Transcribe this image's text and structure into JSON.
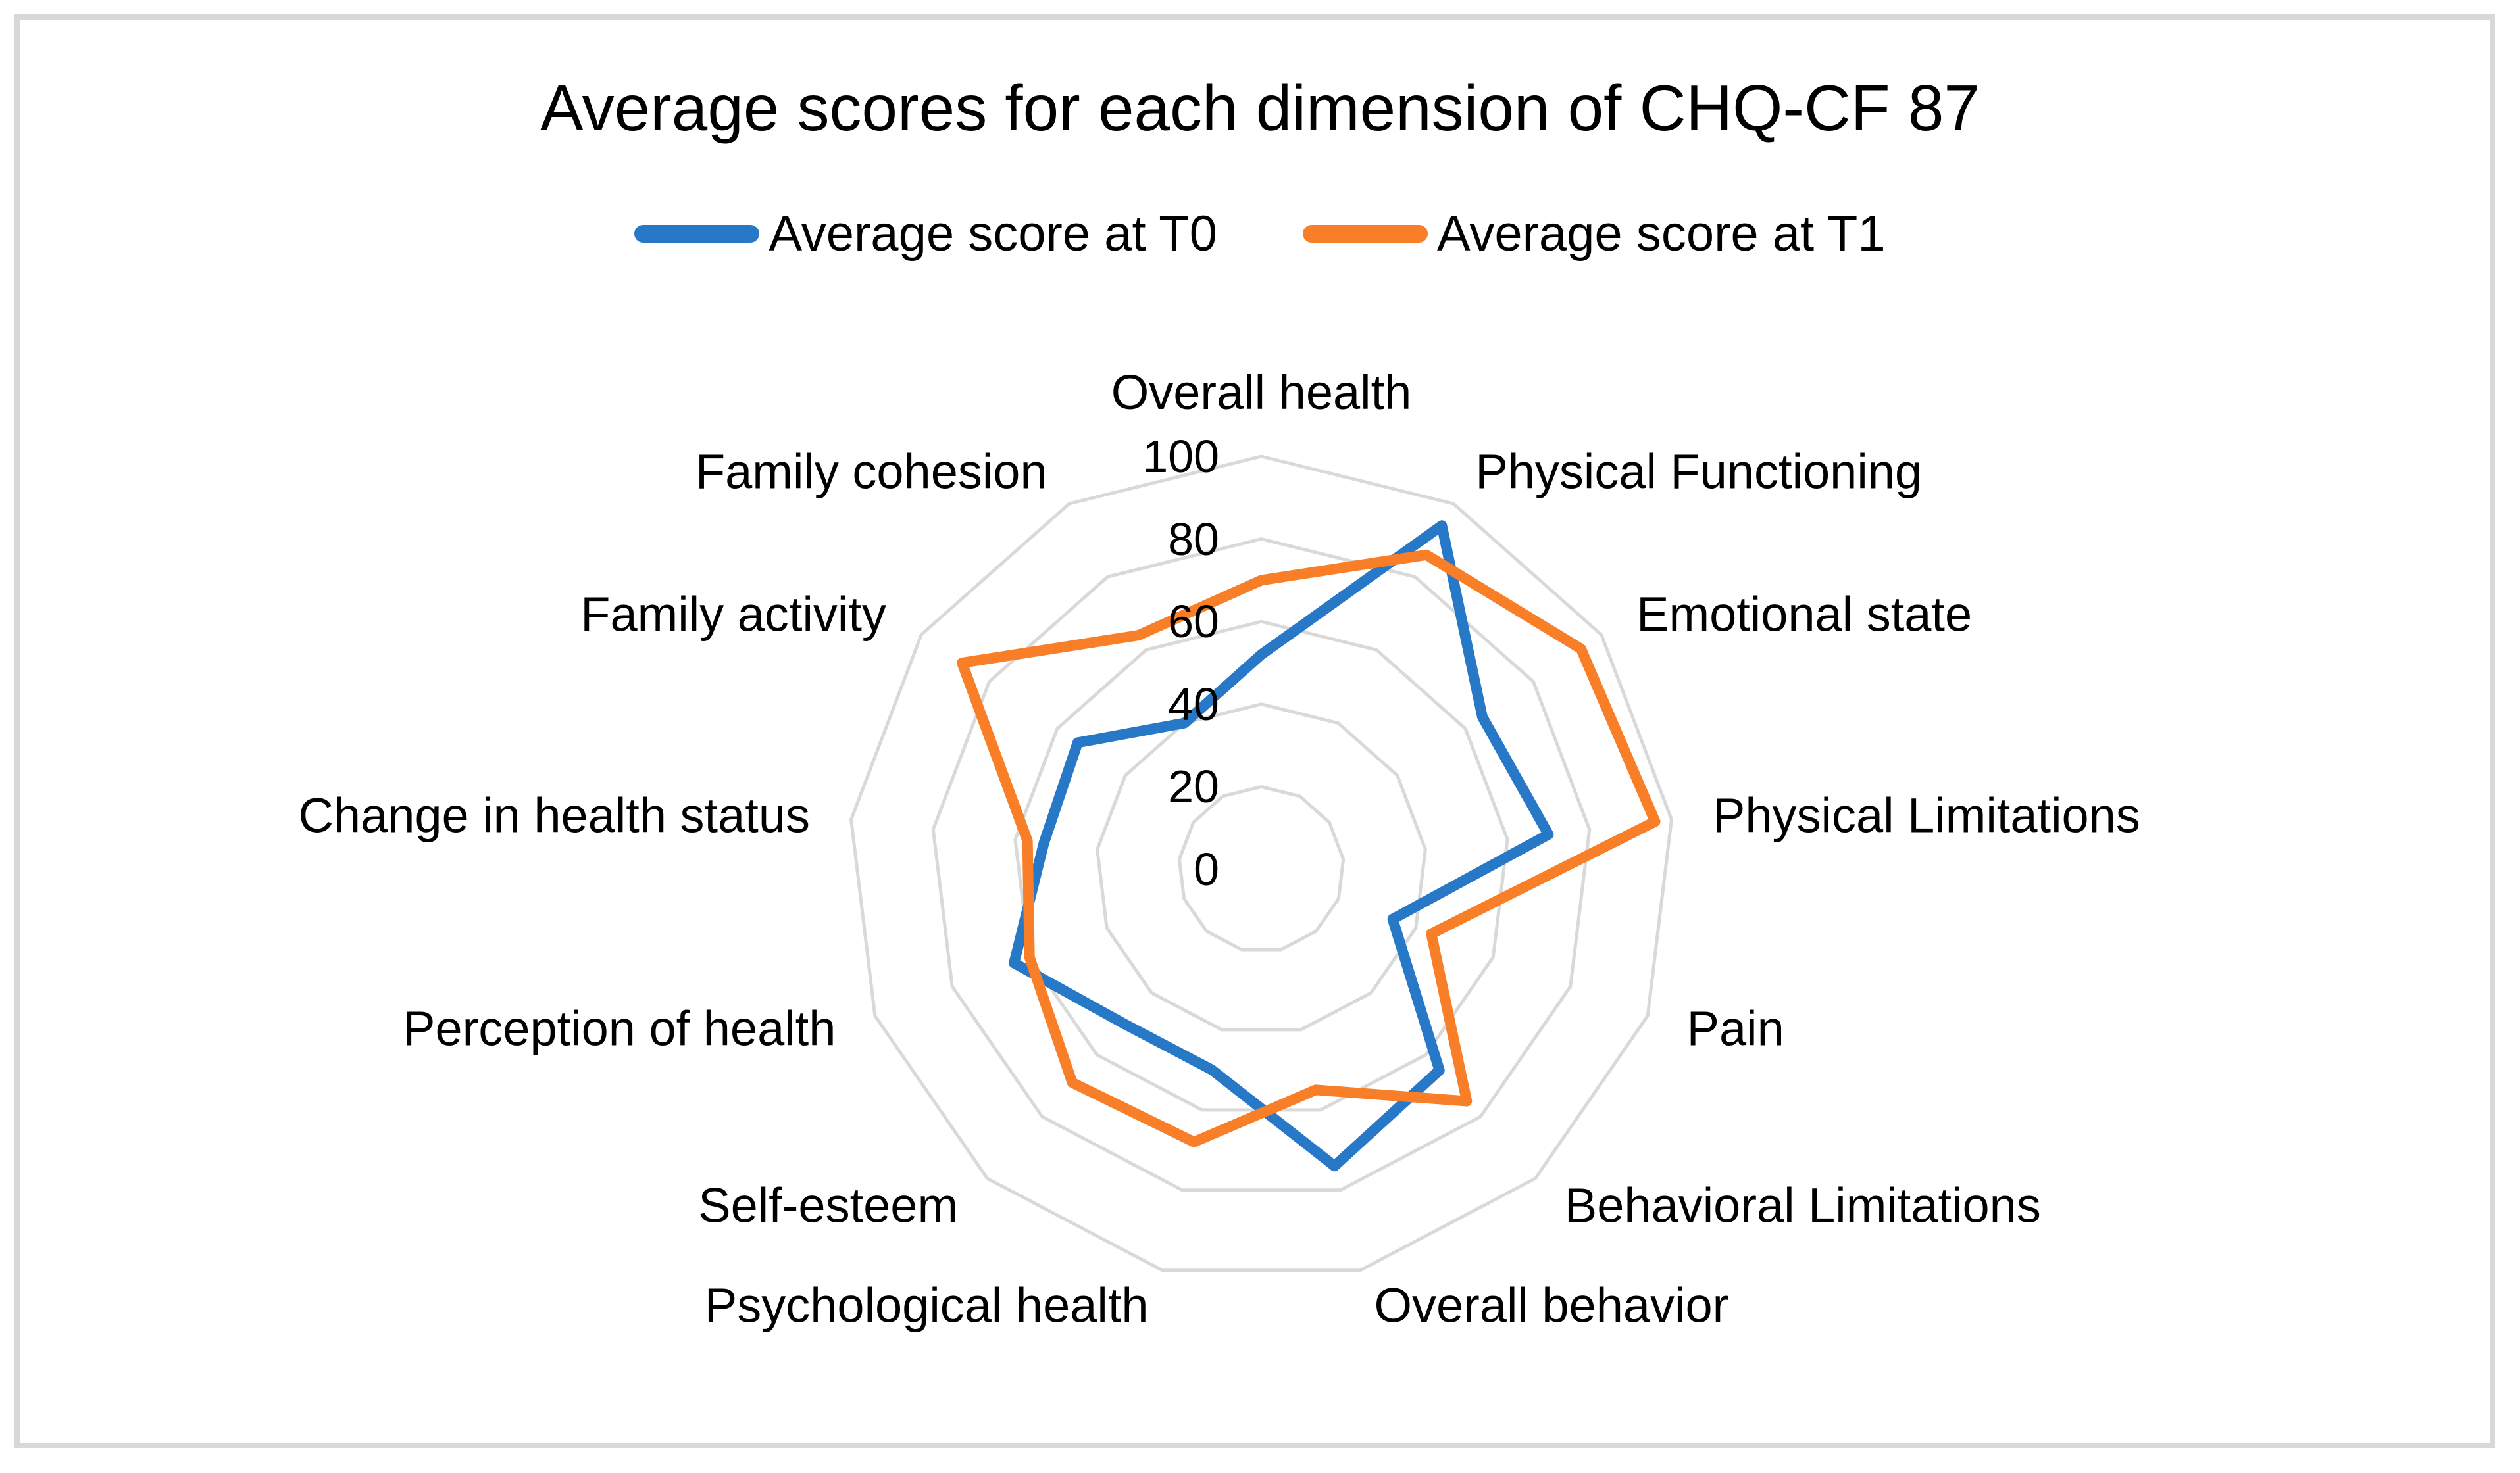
{
  "title": "Average scores for each dimension of CHQ-CF 87",
  "legend": {
    "items": [
      {
        "label": "Average score at T0",
        "color": "#2878c8"
      },
      {
        "label": "Average score at T1",
        "color": "#f97e28"
      }
    ]
  },
  "chart_data": {
    "type": "radar",
    "title": "Average scores for each dimension of CHQ-CF 87",
    "categories": [
      "Overall health",
      "Physical Functioning",
      "Emotional state",
      "Physical Limitations",
      "Pain",
      "Behavioral Limitations",
      "Overall behavior",
      "Psychological health",
      "Self-esteem",
      "Perception of health",
      "Change in health status",
      "Family activity",
      "Family cohesion"
    ],
    "series": [
      {
        "name": "Average score at T0",
        "color": "#2878c8",
        "values": [
          52,
          94,
          65,
          70,
          34,
          65,
          74,
          50,
          50,
          64,
          53,
          54,
          40
        ]
      },
      {
        "name": "Average score at T1",
        "color": "#f97e28",
        "values": [
          70,
          86,
          94,
          96,
          44,
          75,
          55,
          68,
          69,
          60,
          57,
          88,
          64
        ]
      }
    ],
    "ticks": [
      0,
      20,
      40,
      60,
      80,
      100
    ],
    "rmax": 100,
    "gridline_color": "#d9d9d9",
    "text_color": "#000000",
    "legend_position": "top",
    "grid": true
  }
}
